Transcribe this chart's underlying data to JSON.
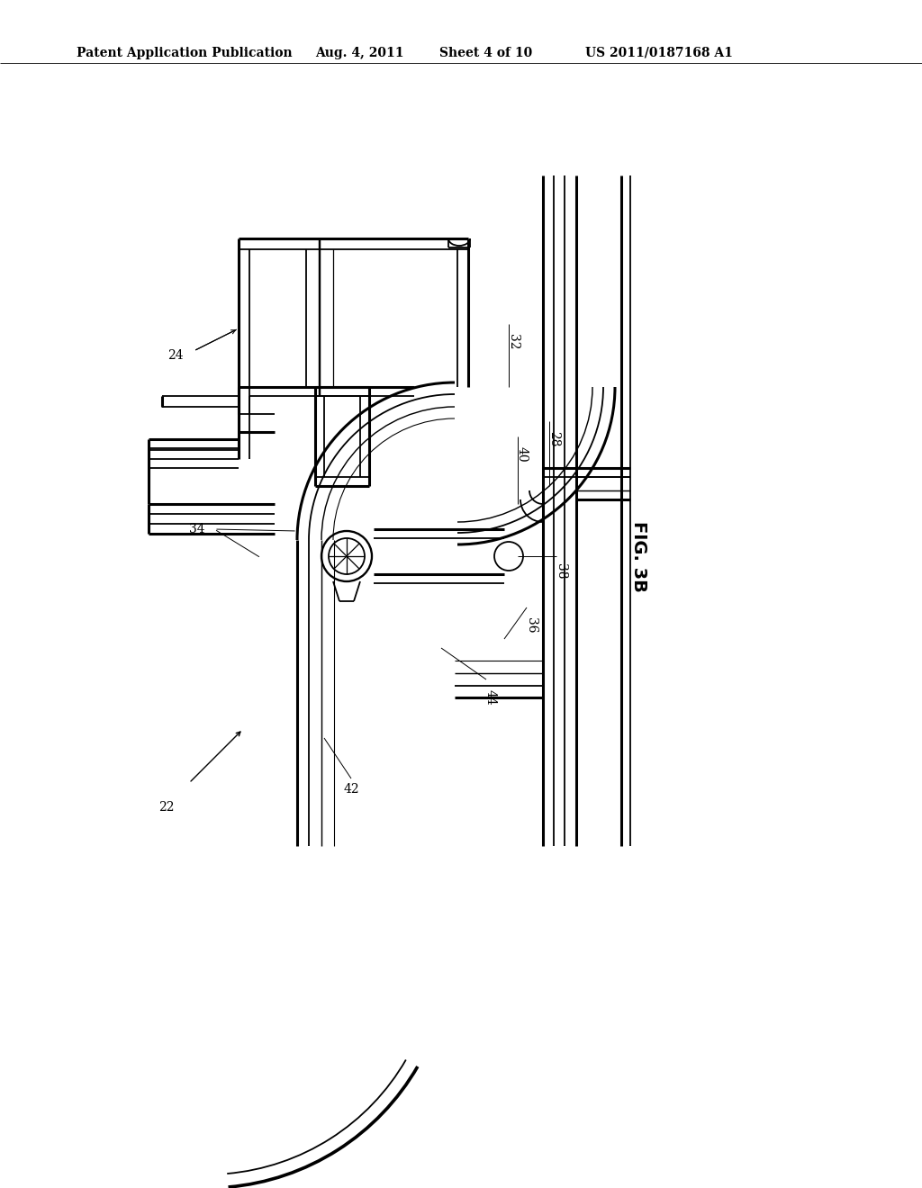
{
  "bg_color": "#ffffff",
  "lc": "#000000",
  "title_text": "Patent Application Publication",
  "date_text": "Aug. 4, 2011",
  "sheet_text": "Sheet 4 of 10",
  "patent_text": "US 2011/0187168 A1",
  "fig_label": "FIG. 3B",
  "lw": 1.3,
  "blw": 2.2
}
